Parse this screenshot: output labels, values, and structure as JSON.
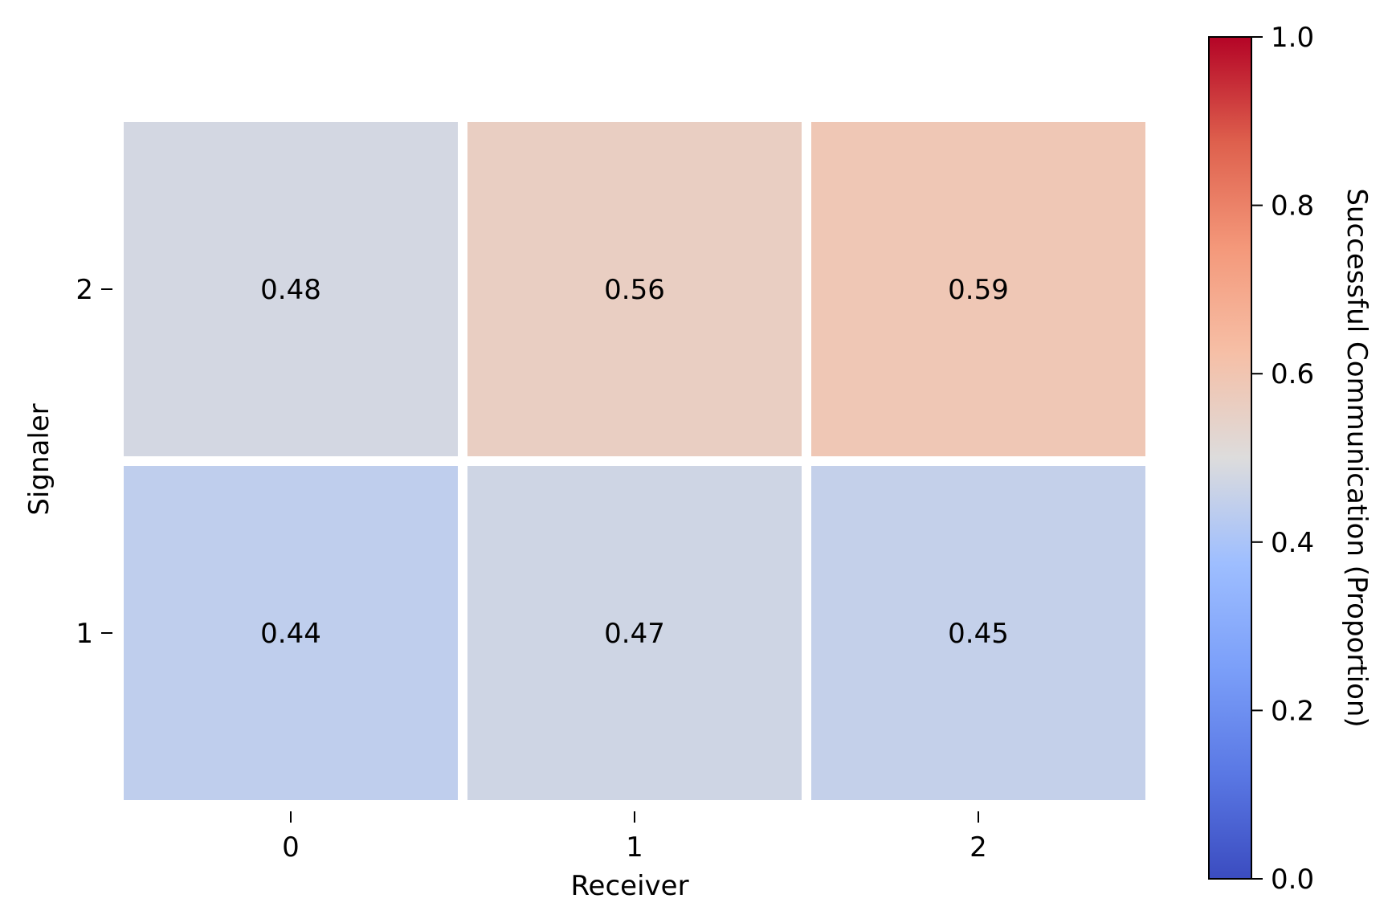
{
  "chart_data": {
    "type": "heatmap",
    "title": "",
    "xlabel": "Receiver",
    "ylabel": "Signaler",
    "x_categories": [
      "0",
      "1",
      "2"
    ],
    "y_categories": [
      "2",
      "1"
    ],
    "values": [
      [
        0.48,
        0.56,
        0.59
      ],
      [
        0.44,
        0.47,
        0.45
      ]
    ],
    "value_labels": [
      [
        "0.48",
        "0.56",
        "0.59"
      ],
      [
        "0.44",
        "0.47",
        "0.45"
      ]
    ],
    "colorbar": {
      "label": "Successful Communication (Proportion)",
      "range": [
        0,
        1
      ],
      "colormap": "coolwarm",
      "ticks": [
        "0.0",
        "0.2",
        "0.4",
        "0.6",
        "0.8",
        "1.0"
      ]
    },
    "colors": {
      "low": "#3b4cc0",
      "mid": "#dddddd",
      "high": "#b40426",
      "cell_border": "#ffffff"
    }
  }
}
